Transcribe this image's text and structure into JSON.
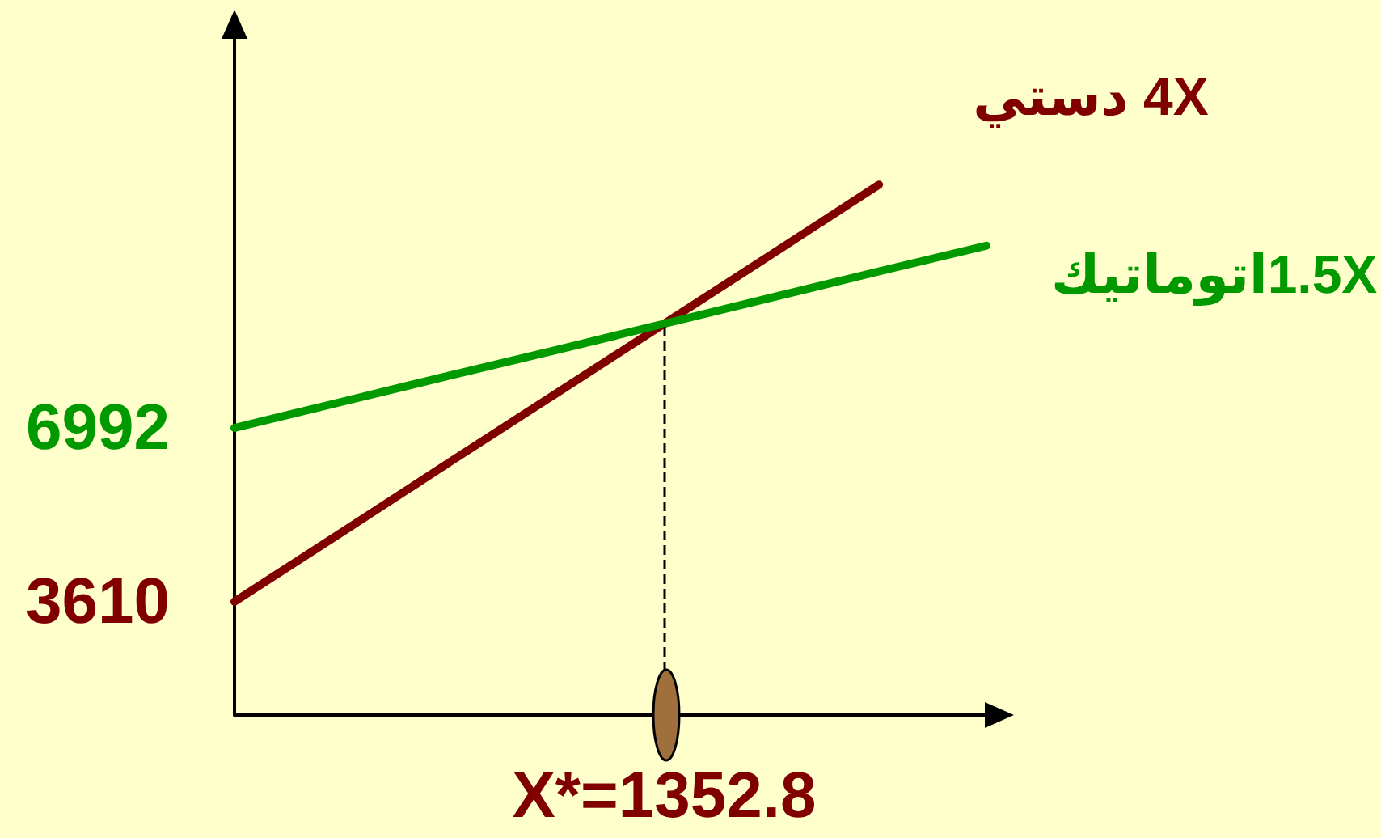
{
  "chart_data": {
    "type": "line",
    "categories": [
      null,
      null,
      null,
      null,
      "X*=1352.8",
      null,
      null,
      null
    ],
    "series": [
      {
        "name": "4X دستي",
        "color": "#800000",
        "values": [
          3610,
          4960,
          6320,
          7670,
          9020,
          10370,
          11730,
          null
        ]
      },
      {
        "name": "1.5Xاتوماتيك",
        "color": "#009900",
        "values": [
          6992,
          7500,
          8010,
          8510,
          9020,
          9530,
          10040,
          10540
        ]
      }
    ],
    "ylim": [
      1400,
      14600
    ],
    "yticks": [
      3610,
      6992
    ],
    "ref_lines": [
      {
        "axis": "x",
        "value": "X*=1352.8",
        "color": "#000000",
        "line_style": "dashed"
      }
    ],
    "grid": false,
    "legend": false,
    "marker": "none",
    "line_style": "solid"
  }
}
